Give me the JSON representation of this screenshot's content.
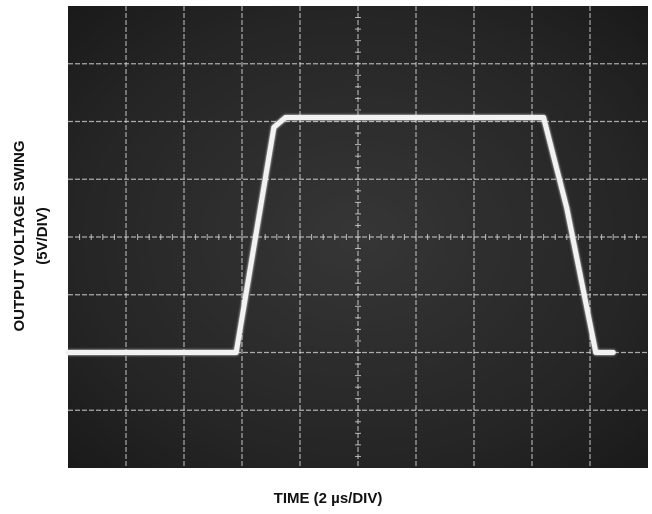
{
  "chart_data": {
    "type": "line",
    "title": "",
    "xlabel": "TIME (2 µs/DIV)",
    "ylabel": "OUTPUT VOLTAGE SWING",
    "ylabel_unit": "(5V/DIV)",
    "x_divisions": 10,
    "y_divisions": 8,
    "xlim": [
      0,
      10
    ],
    "ylim": [
      -4,
      4
    ],
    "grid": true,
    "series": [
      {
        "x": [
          0,
          2.9,
          3.55,
          3.75,
          8.2,
          8.6,
          9.1,
          9.4
        ],
        "y": [
          -2.0,
          -2.0,
          1.9,
          2.07,
          2.07,
          0.5,
          -2.0,
          -2.0
        ]
      }
    ],
    "colors": {
      "screen_background": "#1f1f1f",
      "grid": "#d8d8d8",
      "trace": "#f2f2f2",
      "text": "#111111"
    }
  }
}
